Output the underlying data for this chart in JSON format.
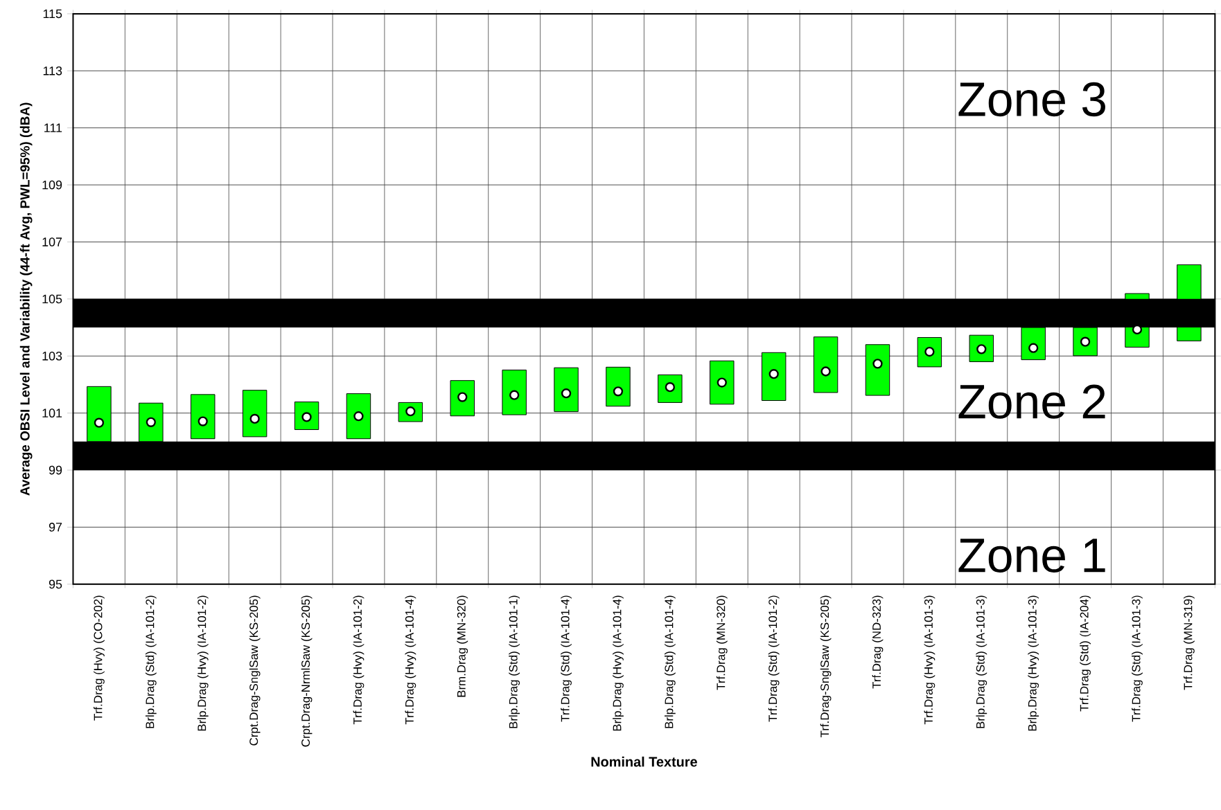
{
  "chart_data": {
    "type": "bar",
    "xlabel": "Nominal Texture",
    "ylabel": "Average OBSI Level and Variability (44-ft Avg, PWL=95%) (dBA)",
    "categories": [
      "Trf.Drag (Hvy) (CO-202)",
      "Brlp.Drag (Std) (IA-101-2)",
      "Brlp.Drag (Hvy) (IA-101-2)",
      "Crpt.Drag-SnglSaw (KS-205)",
      "Crpt.Drag-NrmlSaw (KS-205)",
      "Trf.Drag (Hvy) (IA-101-2)",
      "Trf.Drag (Hvy) (IA-101-4)",
      "Brm.Drag (MN-320)",
      "Brlp.Drag (Std) (IA-101-1)",
      "Trf.Drag (Std) (IA-101-4)",
      "Brlp.Drag (Hvy) (IA-101-4)",
      "Brlp.Drag (Std) (IA-101-4)",
      "Trf.Drag (MN-320)",
      "Trf.Drag (Std) (IA-101-2)",
      "Trf.Drag-SnglSaw (KS-205)",
      "Trf.Drag (ND-323)",
      "Trf.Drag (Hvy) (IA-101-3)",
      "Brlp.Drag (Std) (IA-101-3)",
      "Brlp.Drag (Hvy) (IA-101-3)",
      "Trf.Drag (Std) (IA-204)",
      "Trf.Drag (Std) (IA-101-3)",
      "Trf.Drag (MN-319)"
    ],
    "series": [
      {
        "color": "#00ff00",
        "base": [
          100.0,
          100.0,
          100.1,
          100.17,
          100.42,
          100.1,
          100.7,
          100.9,
          100.94,
          101.05,
          101.24,
          101.37,
          101.31,
          101.44,
          101.72,
          101.62,
          102.62,
          102.8,
          102.87,
          103.01,
          103.31,
          103.53
        ],
        "values": [
          1.93,
          1.35,
          1.55,
          1.63,
          0.97,
          1.58,
          0.67,
          1.24,
          1.57,
          1.54,
          1.37,
          0.97,
          1.52,
          1.68,
          1.95,
          1.78,
          1.03,
          0.93,
          1.13,
          0.99,
          1.88,
          2.67
        ]
      },
      {
        "type": "scatter",
        "color": "#ffffff",
        "marker": "circle",
        "values": [
          100.66,
          100.68,
          100.71,
          100.8,
          100.86,
          100.89,
          101.06,
          101.56,
          101.63,
          101.69,
          101.76,
          101.91,
          102.07,
          102.37,
          102.46,
          102.73,
          103.15,
          103.24,
          103.28,
          103.5,
          103.93,
          null
        ]
      }
    ],
    "ylim": [
      95,
      115
    ],
    "yticks": [
      95,
      97,
      99,
      101,
      103,
      105,
      107,
      109,
      111,
      113,
      115
    ],
    "grid": true,
    "bands": [
      {
        "axis": "y",
        "from": 99,
        "to": 100,
        "color": "#000000"
      },
      {
        "axis": "y",
        "from": 104,
        "to": 105,
        "color": "#000000"
      }
    ],
    "annotations": [
      "Zone 3",
      "Zone 2",
      "Zone 1"
    ]
  }
}
